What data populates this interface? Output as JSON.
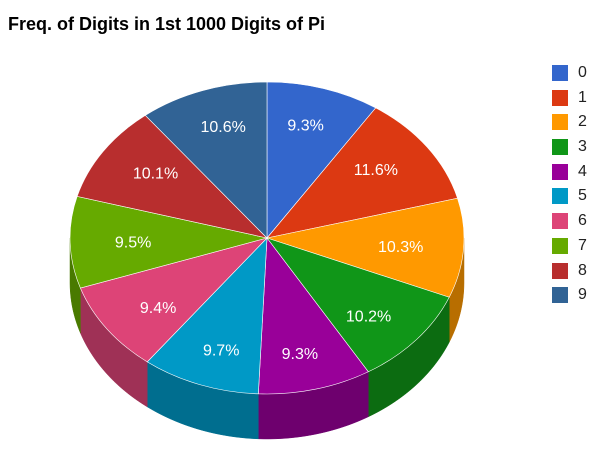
{
  "chart_data": {
    "type": "pie",
    "title": "Freq. of Digits in 1st 1000 Digits of Pi",
    "three_d": true,
    "legend_position": "right",
    "categories": [
      "0",
      "1",
      "2",
      "3",
      "4",
      "5",
      "6",
      "7",
      "8",
      "9"
    ],
    "values": [
      9.3,
      11.6,
      10.3,
      10.2,
      9.3,
      9.7,
      9.4,
      9.5,
      10.1,
      10.6
    ],
    "labels": [
      "9.3%",
      "11.6%",
      "10.3%",
      "10.2%",
      "9.3%",
      "9.7%",
      "9.4%",
      "9.5%",
      "10.1%",
      "10.6%"
    ],
    "colors": [
      "#3366cc",
      "#dc3912",
      "#ff9900",
      "#109618",
      "#990099",
      "#0099c6",
      "#dd4477",
      "#66aa00",
      "#b82e2e",
      "#316395"
    ]
  }
}
